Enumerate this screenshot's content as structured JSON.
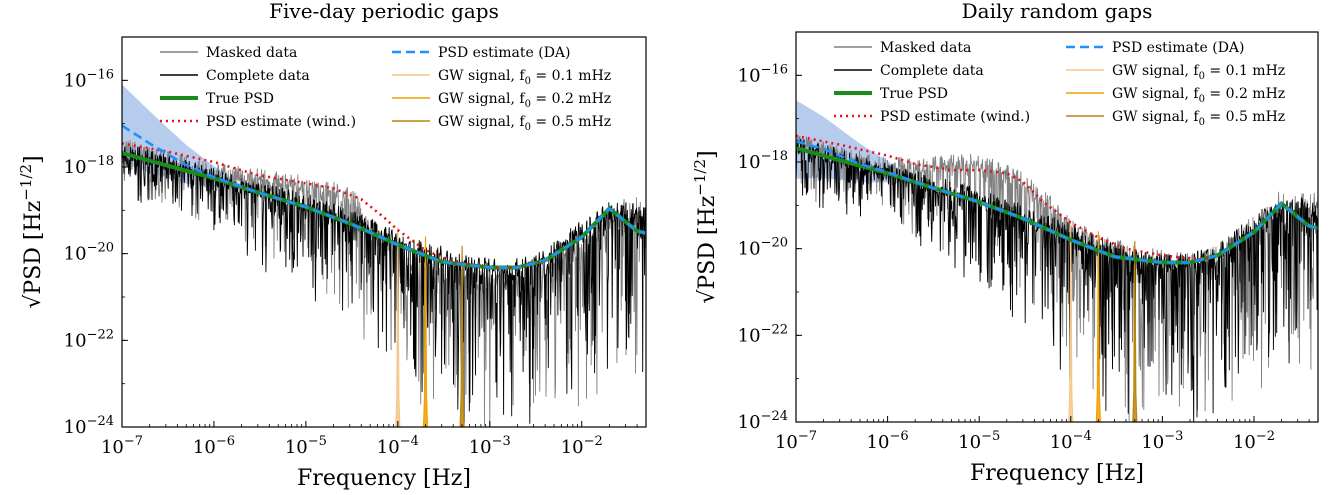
{
  "chart_data": [
    {
      "type": "line",
      "title": "Five-day periodic gaps",
      "xlabel": "Frequency [Hz]",
      "ylabel": "√PSD [Hz^-1/2]",
      "xscale": "log",
      "yscale": "log",
      "xlim": [
        1e-07,
        0.05
      ],
      "ylim": [
        1e-24,
        1e-15
      ],
      "x_ticks": [
        1e-07,
        1e-06,
        1e-05,
        0.0001,
        0.001,
        0.01
      ],
      "x_tick_labels": [
        "10^-7",
        "10^-6",
        "10^-5",
        "10^-4",
        "10^-3",
        "10^-2"
      ],
      "y_ticks": [
        1e-16,
        1e-18,
        1e-20,
        1e-22,
        1e-24
      ],
      "y_tick_labels": [
        "10^-16",
        "10^-18",
        "10^-20",
        "10^-22",
        "10^-24"
      ],
      "legend_position": "top",
      "series": [
        {
          "name": "Masked data",
          "color": "#808080",
          "kind": "noise",
          "x": [
            1e-07,
            3e-07,
            1e-06,
            3e-06,
            1e-05,
            2e-05,
            3.5e-05,
            5e-05,
            7e-05,
            0.0001,
            0.00015,
            0.0003,
            0.001,
            0.002,
            0.004,
            0.01,
            0.02,
            0.04,
            0.05
          ],
          "y": [
            3e-18,
            1.5e-18,
            8e-19,
            6e-19,
            4e-19,
            3e-19,
            2e-19,
            3e-20,
            2e-20,
            1.3e-20,
            6e-21,
            4e-21,
            2.8e-21,
            2.8e-21,
            4e-21,
            2e-20,
            6e-20,
            1e-19,
            1e-19
          ]
        },
        {
          "name": "Complete data",
          "color": "#000000",
          "kind": "noise",
          "x": [
            1e-07,
            3e-07,
            1e-06,
            1e-05,
            0.0001,
            0.0005,
            0.001,
            0.002,
            0.004,
            0.01,
            0.02,
            0.04,
            0.05
          ],
          "y": [
            2.5e-18,
            1.3e-18,
            6e-19,
            1.6e-19,
            2.5e-20,
            6e-21,
            5e-21,
            5e-21,
            8e-21,
            4e-20,
            1e-19,
            1e-19,
            8e-20
          ]
        },
        {
          "name": "True PSD",
          "color": "#1a8c1a",
          "kind": "line",
          "width": 4,
          "x": [
            1e-07,
            3e-07,
            1e-06,
            3e-06,
            1e-05,
            3e-05,
            0.0001,
            0.0003,
            0.001,
            0.002,
            0.004,
            0.01,
            0.02,
            0.04,
            0.05
          ],
          "y": [
            2.1e-18,
            1.1e-18,
            5.5e-19,
            2.6e-19,
            1.2e-19,
            5e-20,
            1.6e-20,
            6.5e-21,
            4.8e-21,
            4.8e-21,
            7e-21,
            2.4e-20,
            1.1e-19,
            3.3e-20,
            3e-20
          ]
        },
        {
          "name": "PSD estimate (wind.)",
          "color": "#e8101a",
          "kind": "dotted",
          "x": [
            1e-07,
            3e-07,
            1e-06,
            3e-06,
            1e-05,
            2e-05,
            4e-05,
            7e-05,
            0.0001,
            0.0002,
            0.0004,
            0.001,
            0.002,
            0.004
          ],
          "y": [
            3.5e-18,
            2.3e-18,
            1.3e-18,
            6.5e-19,
            4.2e-19,
            3.2e-19,
            1.8e-19,
            7e-20,
            3.5e-20,
            1.2e-20,
            6.5e-21,
            4.8e-21,
            4.8e-21,
            7e-21
          ]
        },
        {
          "name": "PSD estimate (DA)",
          "color": "#1e90ff",
          "kind": "dashed",
          "width": 3,
          "x": [
            1e-07,
            2e-07,
            5e-07,
            1e-06,
            3e-06,
            1e-05,
            3e-05,
            0.0001,
            0.0003,
            0.001,
            0.002,
            0.004,
            0.01,
            0.02,
            0.04,
            0.05
          ],
          "y": [
            9e-18,
            3.5e-18,
            1.1e-18,
            5.8e-19,
            2.6e-19,
            1.2e-19,
            5e-20,
            1.6e-20,
            6.5e-21,
            4.8e-21,
            4.8e-21,
            7e-21,
            2.4e-20,
            1.1e-19,
            3.3e-20,
            3e-20
          ]
        },
        {
          "name": "GW signal, f0 = 0.1 mHz",
          "color": "#f5c78a",
          "kind": "spike",
          "f0": 0.0001,
          "peak": 4e-20
        },
        {
          "name": "GW signal, f0 = 0.2 mHz",
          "color": "#f0a000",
          "kind": "spike",
          "f0": 0.0002,
          "peak": 2.5e-20
        },
        {
          "name": "GW signal, f0 = 0.5 mHz",
          "color": "#b8860b",
          "kind": "spike",
          "f0": 0.0005,
          "peak": 1.5e-20
        }
      ]
    },
    {
      "type": "line",
      "title": "Daily random gaps",
      "xlabel": "Frequency [Hz]",
      "ylabel": "√PSD [Hz^-1/2]",
      "xscale": "log",
      "yscale": "log",
      "xlim": [
        1e-07,
        0.05
      ],
      "ylim": [
        1e-24,
        1e-15
      ],
      "x_ticks": [
        1e-07,
        1e-06,
        1e-05,
        0.0001,
        0.001,
        0.01
      ],
      "x_tick_labels": [
        "10^-7",
        "10^-6",
        "10^-5",
        "10^-4",
        "10^-3",
        "10^-2"
      ],
      "y_ticks": [
        1e-16,
        1e-18,
        1e-20,
        1e-22,
        1e-24
      ],
      "y_tick_labels": [
        "10^-16",
        "10^-18",
        "10^-20",
        "10^-22",
        "10^-24"
      ],
      "legend_position": "top",
      "series": [
        {
          "name": "Masked data",
          "color": "#808080",
          "kind": "noise",
          "x": [
            1e-07,
            3e-07,
            1e-06,
            3e-06,
            1e-05,
            3e-05,
            7e-05,
            0.0001,
            0.0002,
            0.0005,
            0.001,
            0.002,
            0.004,
            0.01,
            0.02,
            0.04,
            0.05
          ],
          "y": [
            3e-18,
            1.5e-18,
            8e-19,
            9e-19,
            1e-18,
            4e-19,
            8e-20,
            3e-20,
            1.5e-20,
            8e-21,
            6e-21,
            5e-21,
            8e-21,
            3e-20,
            1e-19,
            1e-19,
            1e-19
          ]
        },
        {
          "name": "Complete data",
          "color": "#000000",
          "kind": "noise",
          "x": [
            1e-07,
            3e-07,
            1e-06,
            1e-05,
            0.0001,
            0.0005,
            0.001,
            0.002,
            0.004,
            0.01,
            0.02,
            0.04,
            0.05
          ],
          "y": [
            2.5e-18,
            1.3e-18,
            6e-19,
            1.6e-19,
            2.5e-20,
            6e-21,
            5e-21,
            5e-21,
            8e-21,
            4e-20,
            1e-19,
            1e-19,
            8e-20
          ]
        },
        {
          "name": "True PSD",
          "color": "#1a8c1a",
          "kind": "line",
          "width": 4,
          "x": [
            1e-07,
            3e-07,
            1e-06,
            3e-06,
            1e-05,
            3e-05,
            0.0001,
            0.0003,
            0.001,
            0.002,
            0.004,
            0.01,
            0.02,
            0.04,
            0.05
          ],
          "y": [
            2.1e-18,
            1.1e-18,
            5.5e-19,
            2.6e-19,
            1.2e-19,
            5e-20,
            1.6e-20,
            6.5e-21,
            4.8e-21,
            4.8e-21,
            7e-21,
            2.4e-20,
            1.1e-19,
            3.3e-20,
            3e-20
          ]
        },
        {
          "name": "PSD estimate (wind.)",
          "color": "#e8101a",
          "kind": "dotted",
          "x": [
            1e-07,
            3e-07,
            1e-06,
            2e-06,
            5e-06,
            1e-05,
            2e-05,
            3e-05,
            5e-05,
            0.0001,
            0.0002,
            0.0004,
            0.001,
            0.002,
            0.003,
            0.004
          ],
          "y": [
            4e-18,
            2.5e-18,
            1.4e-18,
            9e-19,
            6.5e-19,
            6.5e-19,
            5.5e-19,
            3.5e-19,
            1.2e-19,
            4e-20,
            1.8e-20,
            1e-20,
            7e-21,
            6e-21,
            6e-21,
            7e-21
          ]
        },
        {
          "name": "PSD estimate (DA)",
          "color": "#1e90ff",
          "kind": "dashed",
          "width": 3,
          "x": [
            1e-07,
            2e-07,
            5e-07,
            1e-06,
            3e-06,
            1e-05,
            3e-05,
            0.0001,
            0.0003,
            0.001,
            0.002,
            0.004,
            0.01,
            0.02,
            0.04,
            0.05
          ],
          "y": [
            3e-18,
            2e-18,
            9e-19,
            5.8e-19,
            2.6e-19,
            1.2e-19,
            5e-20,
            1.6e-20,
            6.5e-21,
            4.8e-21,
            4.8e-21,
            7e-21,
            2.4e-20,
            1.1e-19,
            3.3e-20,
            3e-20
          ]
        },
        {
          "name": "GW signal, f0 = 0.1 mHz",
          "color": "#f5c78a",
          "kind": "spike",
          "f0": 0.0001,
          "peak": 4e-20
        },
        {
          "name": "GW signal, f0 = 0.2 mHz",
          "color": "#f0a000",
          "kind": "spike",
          "f0": 0.0002,
          "peak": 2.5e-20
        },
        {
          "name": "GW signal, f0 = 0.5 mHz",
          "color": "#b8860b",
          "kind": "spike",
          "f0": 0.0005,
          "peak": 1.5e-20
        }
      ]
    }
  ]
}
